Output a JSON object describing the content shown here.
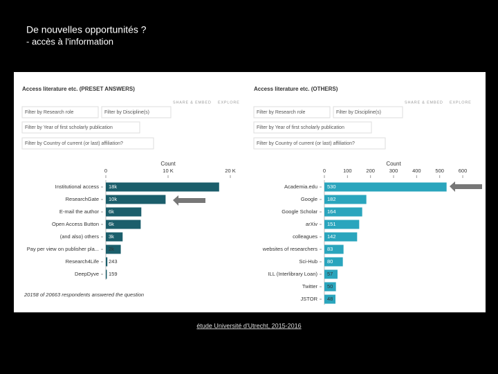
{
  "title": "De nouvelles opportunités ?",
  "subtitle": "- accès à l'information",
  "source": "étude Université d'Utrecht, 2015-2016",
  "chart_data": [
    {
      "type": "barh",
      "title": "Access literature etc. (PRESET ANSWERS)",
      "links": [
        "SHARE & EMBED",
        "EXPLORE"
      ],
      "filters": [
        "Filter by Research role",
        "Filter by Discipline(s)",
        "Filter by Year of first scholarly publication",
        "Filter by Country of current (or last) affiliation?"
      ],
      "x_label": "Count",
      "xlim": [
        0,
        20000
      ],
      "xticks": [
        0,
        {
          "value": 10000,
          "label": "10 K"
        },
        {
          "value": 20000,
          "label": "20 K"
        }
      ],
      "categories": [
        "Institutional access",
        "ResearchGate",
        "E-mail the author",
        "Open Access Button",
        "(and also) others",
        "Pay per view on publisher pla...",
        "Research4Life",
        "DeepDyve"
      ],
      "values": [
        18200,
        9600,
        5700,
        5600,
        2700,
        2400,
        243,
        159
      ],
      "value_labels": [
        "18k",
        "10k",
        "6k",
        "6k",
        "3k",
        "2k",
        "243",
        "159"
      ],
      "color": "#1b5e6b",
      "footnote": "20158 of 20663 respondents answered the question"
    },
    {
      "type": "barh",
      "title": "Access literature etc. (OTHERS)",
      "links": [
        "SHARE & EMBED",
        "EXPLORE"
      ],
      "filters": [
        "Filter by Research role",
        "Filter by Discipline(s)",
        "Filter by Year of first scholarly publication",
        "Filter by Country of current (or last) affiliation?"
      ],
      "x_label": "Count",
      "xlim": [
        0,
        600
      ],
      "xticks": [
        0,
        100,
        200,
        300,
        400,
        500,
        600
      ],
      "categories": [
        "Academia.edu",
        "Google",
        "Google Scholar",
        "arXiv",
        "colleagues",
        "websites of researchers",
        "Sci-Hub",
        "ILL (Interlibrary Loan)",
        "Twitter",
        "JSTOR"
      ],
      "values": [
        530,
        182,
        164,
        151,
        142,
        83,
        80,
        57,
        50,
        48
      ],
      "color": "#2aa5bd"
    }
  ]
}
